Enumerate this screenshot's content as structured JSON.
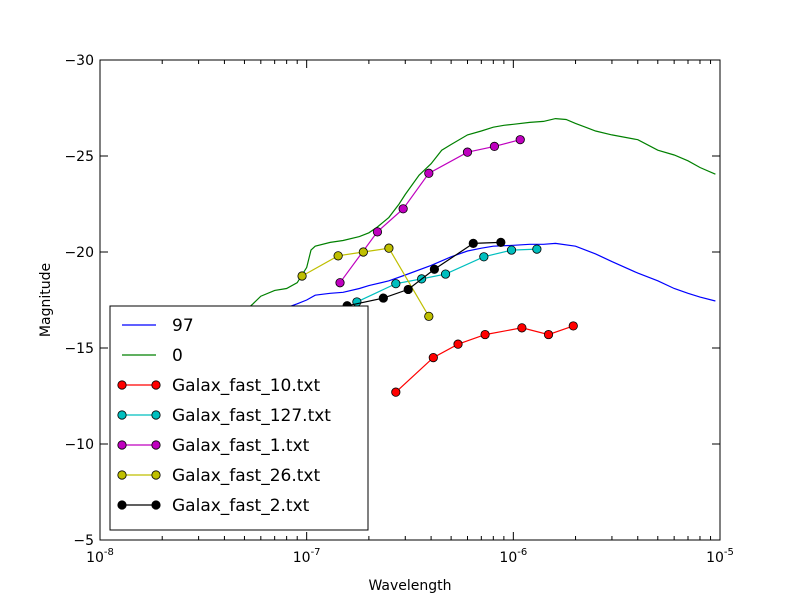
{
  "chart_data": {
    "type": "line",
    "xlabel": "Wavelength",
    "ylabel": "Magnitude",
    "xscale": "log",
    "xlim": [
      1e-08,
      1e-05
    ],
    "ylim": [
      -5,
      -30
    ],
    "y_inverted": true,
    "x_ticks": [
      {
        "value": 1e-08,
        "base": "10",
        "exp": "-8"
      },
      {
        "value": 1e-07,
        "base": "10",
        "exp": "-7"
      },
      {
        "value": 1e-06,
        "base": "10",
        "exp": "-6"
      },
      {
        "value": 1e-05,
        "base": "10",
        "exp": "-5"
      }
    ],
    "y_ticks": [
      {
        "value": -30,
        "label": "−30"
      },
      {
        "value": -25,
        "label": "−25"
      },
      {
        "value": -20,
        "label": "−20"
      },
      {
        "value": -15,
        "label": "−15"
      },
      {
        "value": -10,
        "label": "−10"
      },
      {
        "value": -5,
        "label": "−5"
      }
    ],
    "grid": false,
    "legend_position": "lower-left",
    "series": [
      {
        "name": "97",
        "color": "#0000ff",
        "marker": false,
        "x": [
          4.4e-08,
          5e-08,
          6e-08,
          7e-08,
          8e-08,
          9e-08,
          1e-07,
          1.1e-07,
          1.2e-07,
          1.3e-07,
          1.5e-07,
          1.8e-07,
          2e-07,
          2.5e-07,
          3e-07,
          4e-07,
          5e-07,
          6e-07,
          7e-07,
          8e-07,
          1e-06,
          1.2e-06,
          1.4e-06,
          1.6e-06,
          2e-06,
          2.5e-06,
          3e-06,
          4e-06,
          5e-06,
          6e-06,
          7e-06,
          8e-06,
          9.5e-06
        ],
        "y": [
          -16.2,
          -16.4,
          -16.7,
          -16.9,
          -17.1,
          -17.3,
          -17.5,
          -17.75,
          -17.8,
          -17.85,
          -17.9,
          -18.1,
          -18.25,
          -18.5,
          -18.8,
          -19.3,
          -19.75,
          -20.05,
          -20.2,
          -20.3,
          -20.35,
          -20.4,
          -20.4,
          -20.45,
          -20.3,
          -19.9,
          -19.5,
          -18.9,
          -18.5,
          -18.1,
          -17.85,
          -17.65,
          -17.45
        ]
      },
      {
        "name": "0",
        "color": "#008000",
        "marker": false,
        "x": [
          4.4e-08,
          5e-08,
          5.5e-08,
          6e-08,
          7e-08,
          8e-08,
          9e-08,
          1e-07,
          1.05e-07,
          1.1e-07,
          1.3e-07,
          1.5e-07,
          1.8e-07,
          2e-07,
          2.2e-07,
          2.5e-07,
          2.8e-07,
          3e-07,
          3.5e-07,
          4e-07,
          4.5e-07,
          5e-07,
          6e-07,
          7e-07,
          8e-07,
          9e-07,
          1e-06,
          1.2e-06,
          1.4e-06,
          1.6e-06,
          1.8e-06,
          2e-06,
          2.5e-06,
          3e-06,
          4e-06,
          5e-06,
          6e-06,
          7e-06,
          8e-06,
          9.5e-06
        ],
        "y": [
          -16.6,
          -16.9,
          -17.3,
          -17.7,
          -18.0,
          -18.1,
          -18.4,
          -19.2,
          -20.1,
          -20.3,
          -20.5,
          -20.6,
          -20.8,
          -21.0,
          -21.3,
          -21.8,
          -22.5,
          -23.0,
          -24.0,
          -24.6,
          -25.3,
          -25.6,
          -26.1,
          -26.3,
          -26.5,
          -26.6,
          -26.65,
          -26.75,
          -26.8,
          -26.95,
          -26.9,
          -26.7,
          -26.3,
          -26.1,
          -25.85,
          -25.3,
          -25.05,
          -24.75,
          -24.4,
          -24.05
        ]
      },
      {
        "name": "Galax_fast_10.txt",
        "color": "#ff0000",
        "marker": true,
        "x": [
          2.7e-07,
          4.1e-07,
          5.4e-07,
          7.3e-07,
          1.1e-06,
          1.48e-06,
          1.95e-06
        ],
        "y": [
          -12.7,
          -14.5,
          -15.2,
          -15.7,
          -16.05,
          -15.7,
          -16.15
        ]
      },
      {
        "name": "Galax_fast_127.txt",
        "color": "#00bfbf",
        "marker": true,
        "x": [
          1.75e-07,
          2.7e-07,
          3.6e-07,
          4.7e-07,
          7.2e-07,
          9.8e-07,
          1.3e-06
        ],
        "y": [
          -17.4,
          -18.35,
          -18.6,
          -18.85,
          -19.75,
          -20.1,
          -20.15
        ]
      },
      {
        "name": "Galax_fast_1.txt",
        "color": "#bf00bf",
        "marker": true,
        "x": [
          1.45e-07,
          2.2e-07,
          2.93e-07,
          3.9e-07,
          6e-07,
          8.1e-07,
          1.08e-06
        ],
        "y": [
          -18.4,
          -21.05,
          -22.25,
          -24.1,
          -25.2,
          -25.5,
          -25.85
        ]
      },
      {
        "name": "Galax_fast_26.txt",
        "color": "#bfbf00",
        "marker": true,
        "x": [
          9.5e-08,
          1.42e-07,
          1.88e-07,
          2.5e-07,
          3.9e-07
        ],
        "y": [
          -18.75,
          -19.8,
          -20.0,
          -20.2,
          -16.65
        ]
      },
      {
        "name": "Galax_fast_2.txt",
        "color": "#000000",
        "marker": true,
        "x": [
          1.57e-07,
          2.35e-07,
          3.1e-07,
          4.15e-07,
          6.4e-07,
          8.7e-07
        ],
        "y": [
          -17.2,
          -17.6,
          -18.05,
          -19.1,
          -20.45,
          -20.5
        ]
      }
    ]
  }
}
